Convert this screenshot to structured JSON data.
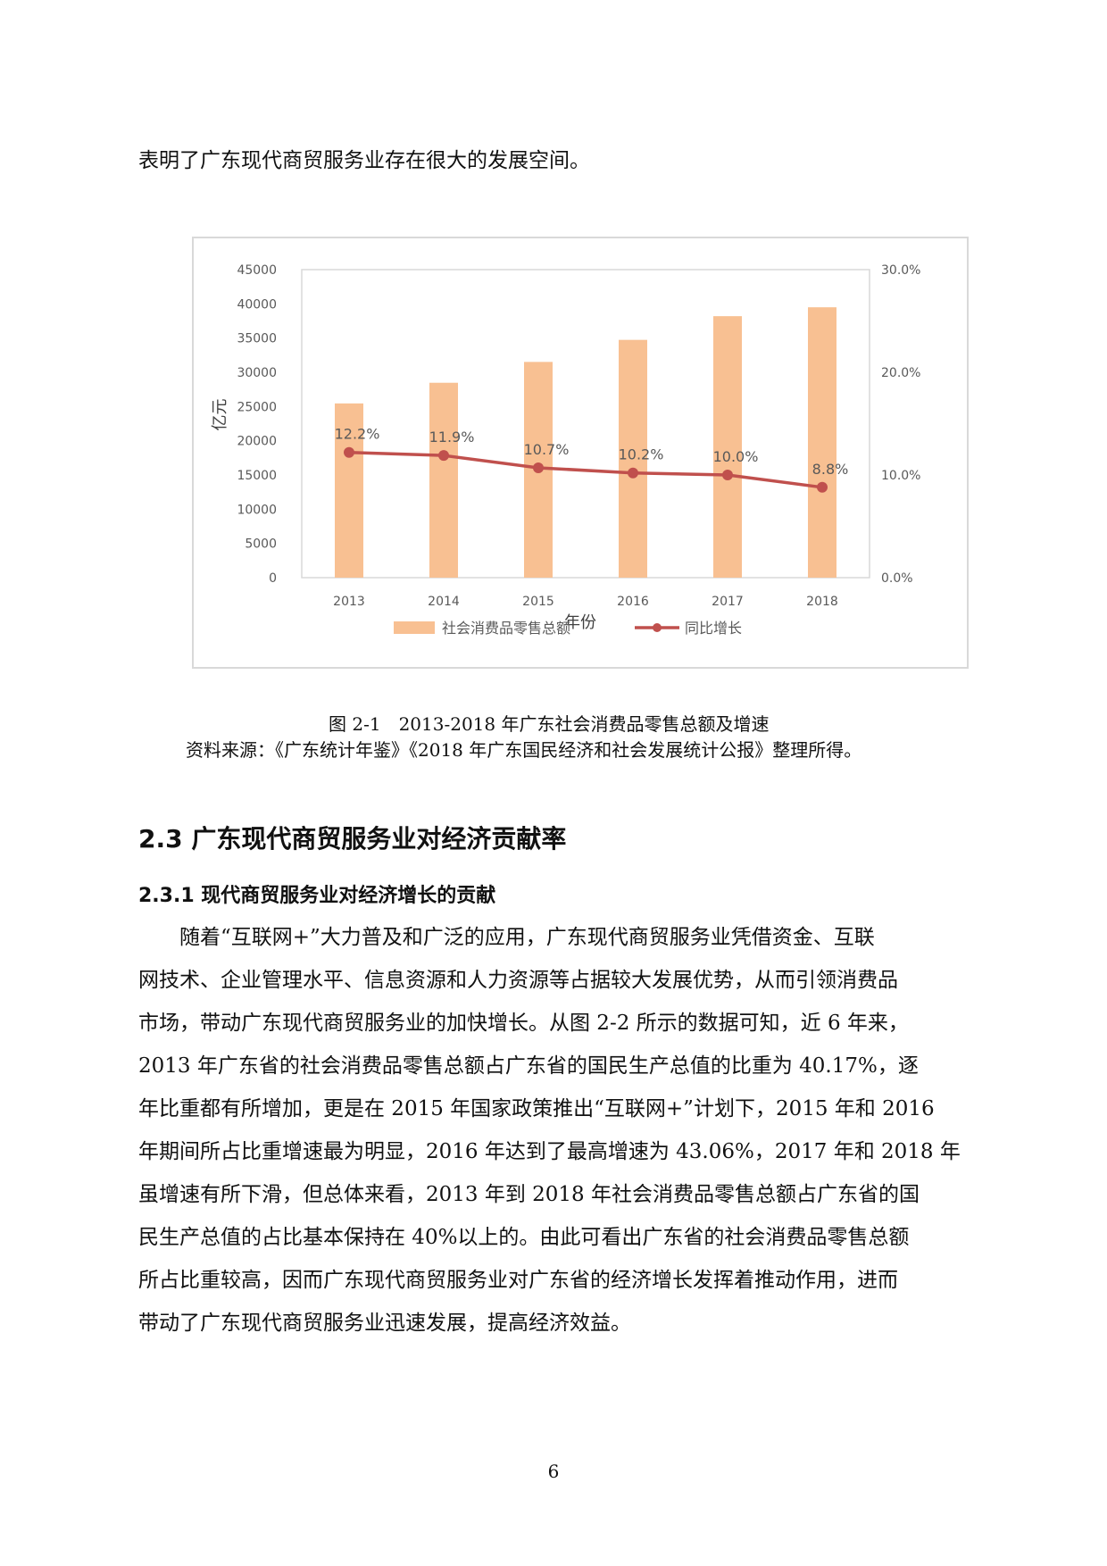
{
  "intro_line": "表明了广东现代商贸服务业存在很大的发展空间。",
  "chart_data": {
    "type": "bar+line",
    "categories": [
      "2013",
      "2014",
      "2015",
      "2016",
      "2017",
      "2018"
    ],
    "series": [
      {
        "name": "社会消费品零售总额",
        "type": "bar",
        "axis": "left",
        "values": [
          25454,
          28471,
          31518,
          34739,
          38200,
          39501
        ]
      },
      {
        "name": "同比增长",
        "type": "line",
        "axis": "right",
        "values": [
          12.2,
          11.9,
          10.7,
          10.2,
          10.0,
          8.8
        ],
        "labels": [
          "12.2%",
          "11.9%",
          "10.7%",
          "10.2%",
          "10.0%",
          "8.8%"
        ]
      }
    ],
    "xlabel": "年份",
    "ylabel": "亿元",
    "ylim": [
      0,
      45000
    ],
    "yticks": [
      "0",
      "5000",
      "10000",
      "15000",
      "20000",
      "25000",
      "30000",
      "35000",
      "40000",
      "45000"
    ],
    "y2lim": [
      0,
      30
    ],
    "y2ticks": [
      "0.0%",
      "10.0%",
      "20.0%",
      "30.0%"
    ],
    "legend_position": "bottom",
    "colors": {
      "bar": "#f8c092",
      "line": "#c0504d",
      "axis_text": "#595959",
      "plot_border": "#d9d9d9"
    }
  },
  "figure_caption": "图 2-1　2013-2018 年广东社会消费品零售总额及增速",
  "source_note": "资料来源：《广东统计年鉴》《2018 年广东国民经济和社会发展统计公报》整理所得。",
  "section_heading": "2.3 广东现代商贸服务业对经济贡献率",
  "subsection_heading": "2.3.1 现代商贸服务业对经济增长的贡献",
  "paragraph_lines": [
    "　　随着“互联网+”大力普及和广泛的应用，广东现代商贸服务业凭借资金、互联",
    "网技术、企业管理水平、信息资源和人力资源等占据较大发展优势，从而引领消费品",
    "市场，带动广东现代商贸服务业的加快增长。从图 2-2 所示的数据可知，近 6 年来，",
    "2013 年广东省的社会消费品零售总额占广东省的国民生产总值的比重为 40.17%，逐",
    "年比重都有所增加，更是在 2015 年国家政策推出“互联网+”计划下，2015 年和 2016",
    "年期间所占比重增速最为明显，2016 年达到了最高增速为 43.06%，2017 年和 2018 年",
    "虽增速有所下滑，但总体来看，2013 年到 2018 年社会消费品零售总额占广东省的国",
    "民生产总值的占比基本保持在 40%以上的。由此可看出广东省的社会消费品零售总额",
    "所占比重较高，因而广东现代商贸服务业对广东省的经济增长发挥着推动作用，进而",
    "带动了广东现代商贸服务业迅速发展，提高经济效益。"
  ],
  "page_number": "6"
}
